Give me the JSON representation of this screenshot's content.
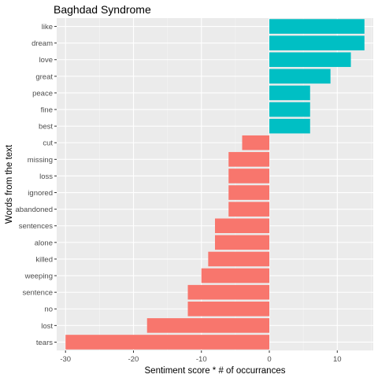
{
  "chart_data": {
    "type": "bar",
    "orientation": "horizontal",
    "title": "Baghdad Syndrome",
    "xlabel": "Sentiment score * # of occurrances",
    "ylabel": "Words from the text",
    "xlim": [
      -31.3,
      15.3
    ],
    "xticks": [
      -30,
      -20,
      -10,
      0,
      10
    ],
    "grid": true,
    "legend": "none",
    "categories": [
      "like",
      "dream",
      "love",
      "great",
      "peace",
      "fine",
      "best",
      "cut",
      "missing",
      "loss",
      "ignored",
      "abandoned",
      "sentences",
      "alone",
      "killed",
      "weeping",
      "sentence",
      "no",
      "lost",
      "tears"
    ],
    "values": [
      14,
      14,
      12,
      9,
      6,
      6,
      6,
      -4,
      -6,
      -6,
      -6,
      -6,
      -8,
      -8,
      -9,
      -10,
      -12,
      -12,
      -18,
      -30
    ],
    "colors": {
      "positive": "#00BFC4",
      "negative": "#F8766D",
      "panel_background": "#EBEBEB",
      "grid_major": "#FFFFFF",
      "grid_minor": "#F5F5F5"
    }
  }
}
